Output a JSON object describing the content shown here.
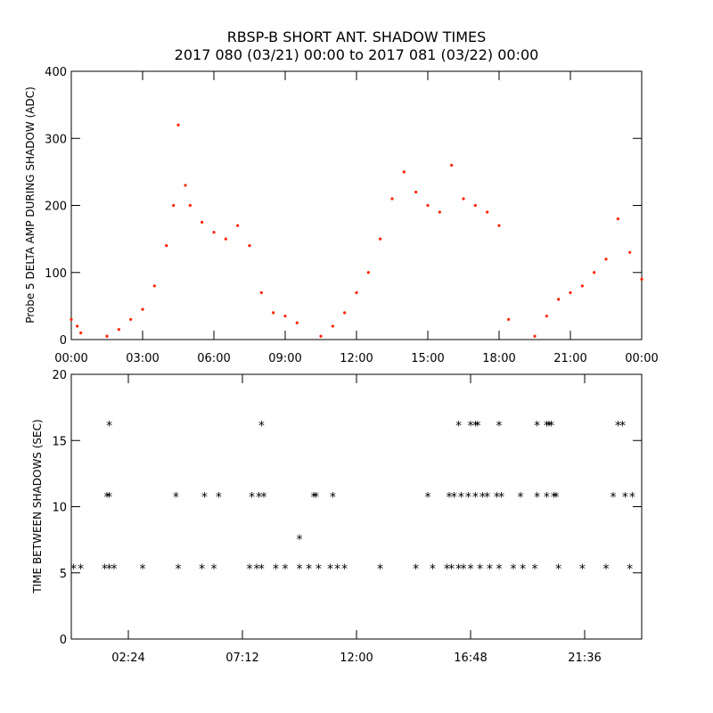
{
  "title": "RBSP-B SHORT ANT. SHADOW TIMES",
  "subtitle": "2017 080 (03/21) 00:00 to 2017 081 (03/22) 00:00",
  "colors": {
    "series_top": "#ff2200",
    "series_bottom": "#000000",
    "axes": "#000000"
  },
  "chart_data": [
    {
      "type": "scatter",
      "ylabel": "Probe 5 DELTA AMP DURING SHADOW (ADC)",
      "xlabel": "",
      "xunit": "hours",
      "xlim": [
        0,
        24
      ],
      "ylim": [
        0,
        400
      ],
      "xticks": [
        0,
        3,
        6,
        9,
        12,
        15,
        18,
        21,
        24
      ],
      "xtick_labels": [
        "00:00",
        "03:00",
        "06:00",
        "09:00",
        "12:00",
        "15:00",
        "18:00",
        "21:00",
        "00:00"
      ],
      "yticks": [
        0,
        100,
        200,
        300,
        400
      ],
      "ytick_labels": [
        "0",
        "100",
        "200",
        "300",
        "400"
      ],
      "grid": false,
      "series": [
        {
          "color": "#ff2200",
          "x": [
            0.0,
            0.25,
            0.4,
            1.5,
            2.0,
            2.5,
            3.0,
            3.5,
            4.0,
            4.3,
            4.5,
            4.8,
            5.0,
            5.5,
            6.0,
            6.5,
            7.0,
            7.5,
            8.0,
            8.5,
            9.0,
            9.5,
            10.5,
            11.0,
            11.5,
            12.0,
            12.5,
            13.0,
            13.5,
            14.0,
            14.5,
            15.0,
            15.5,
            16.0,
            16.5,
            17.0,
            17.5,
            18.0,
            18.4,
            19.5,
            20.0,
            20.5,
            21.0,
            21.5,
            22.0,
            22.5,
            23.0,
            23.5,
            24.0
          ],
          "y": [
            30,
            20,
            10,
            5,
            15,
            30,
            45,
            80,
            140,
            200,
            320,
            230,
            200,
            175,
            160,
            150,
            170,
            140,
            70,
            40,
            35,
            25,
            5,
            20,
            40,
            70,
            100,
            150,
            210,
            250,
            220,
            200,
            190,
            260,
            210,
            200,
            190,
            170,
            30,
            5,
            35,
            60,
            70,
            80,
            100,
            120,
            180,
            130,
            90
          ]
        }
      ]
    },
    {
      "type": "scatter",
      "ylabel": "TIME BETWEEN SHADOWS (SEC)",
      "xlabel": "",
      "xunit": "hours",
      "xlim": [
        0,
        24
      ],
      "ylim": [
        0,
        20
      ],
      "xticks": [
        2.4,
        7.2,
        12.0,
        16.8,
        21.6
      ],
      "xtick_labels": [
        "02:24",
        "07:12",
        "12:00",
        "16:48",
        "21:36"
      ],
      "yticks": [
        0,
        5,
        10,
        15,
        20
      ],
      "ytick_labels": [
        "0",
        "5",
        "10",
        "15",
        "20"
      ],
      "grid": false,
      "series": [
        {
          "color": "#000000",
          "marker": "*",
          "x": [
            0.1,
            0.4,
            1.4,
            1.6,
            1.8,
            3.0,
            4.5,
            5.5,
            6.0,
            7.5,
            7.8,
            8.0,
            8.6,
            9.0,
            9.6,
            10.0,
            10.4,
            10.9,
            11.2,
            11.5,
            13.0,
            14.5,
            15.2,
            15.8,
            16.0,
            16.3,
            16.5,
            16.8,
            17.2,
            17.6,
            18.0,
            18.6,
            19.0,
            19.5,
            20.5,
            21.5,
            22.5,
            23.5,
            1.5,
            1.6,
            4.4,
            5.6,
            6.2,
            7.6,
            7.9,
            8.1,
            10.2,
            10.3,
            11.0,
            15.0,
            15.9,
            16.1,
            16.4,
            16.7,
            17.0,
            17.3,
            17.5,
            17.9,
            18.1,
            18.9,
            19.6,
            20.0,
            20.3,
            20.4,
            22.8,
            23.3,
            23.6,
            1.6,
            8.0,
            16.3,
            16.8,
            17.0,
            17.1,
            18.0,
            19.6,
            20.0,
            20.1,
            20.2,
            23.0,
            23.2,
            9.6
          ],
          "y": [
            5.4,
            5.4,
            5.4,
            5.4,
            5.4,
            5.4,
            5.4,
            5.4,
            5.4,
            5.4,
            5.4,
            5.4,
            5.4,
            5.4,
            5.4,
            5.4,
            5.4,
            5.4,
            5.4,
            5.4,
            5.4,
            5.4,
            5.4,
            5.4,
            5.4,
            5.4,
            5.4,
            5.4,
            5.4,
            5.4,
            5.4,
            5.4,
            5.4,
            5.4,
            5.4,
            5.4,
            5.4,
            5.4,
            10.8,
            10.8,
            10.8,
            10.8,
            10.8,
            10.8,
            10.8,
            10.8,
            10.8,
            10.8,
            10.8,
            10.8,
            10.8,
            10.8,
            10.8,
            10.8,
            10.8,
            10.8,
            10.8,
            10.8,
            10.8,
            10.8,
            10.8,
            10.8,
            10.8,
            10.8,
            10.8,
            10.8,
            10.8,
            16.2,
            16.2,
            16.2,
            16.2,
            16.2,
            16.2,
            16.2,
            16.2,
            16.2,
            16.2,
            16.2,
            16.2,
            16.2,
            7.6
          ]
        }
      ]
    }
  ]
}
